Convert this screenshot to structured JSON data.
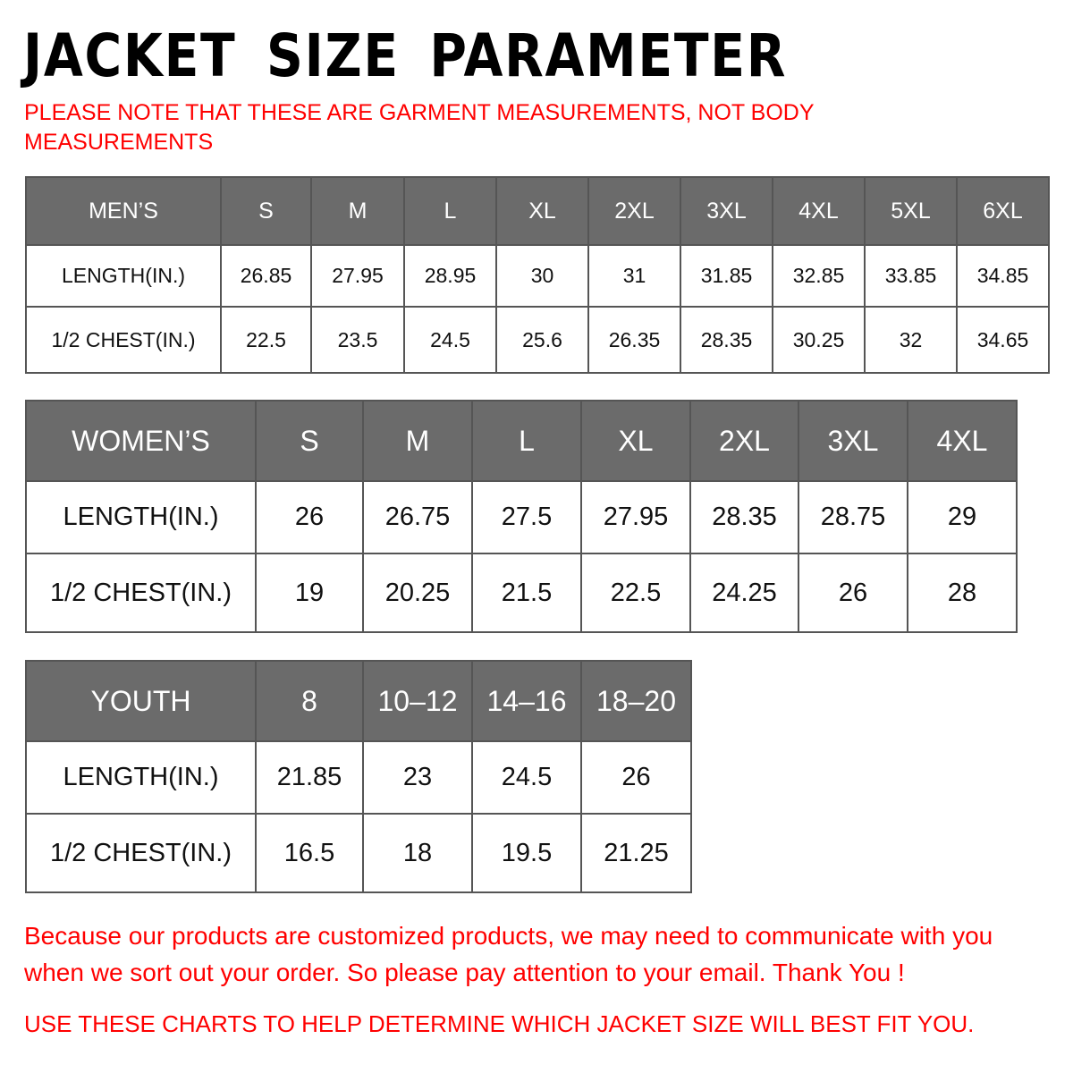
{
  "title": "JACKET SIZE PARAMETER",
  "note": "PLEASE NOTE THAT THESE ARE GARMENT MEASUREMENTS, NOT BODY MEASUREMENTS",
  "tables": [
    {
      "id": "mens",
      "header": [
        "MEN’S",
        "S",
        "M",
        "L",
        "XL",
        "2XL",
        "3XL",
        "4XL",
        "5XL",
        "6XL"
      ],
      "rows": [
        [
          "LENGTH(IN.)",
          "26.85",
          "27.95",
          "28.95",
          "30",
          "31",
          "31.85",
          "32.85",
          "33.85",
          "34.85"
        ],
        [
          "1/2 CHEST(IN.)",
          "22.5",
          "23.5",
          "24.5",
          "25.6",
          "26.35",
          "28.35",
          "30.25",
          "32",
          "34.65"
        ]
      ]
    },
    {
      "id": "womens",
      "header": [
        "WOMEN’S",
        "S",
        "M",
        "L",
        "XL",
        "2XL",
        "3XL",
        "4XL"
      ],
      "rows": [
        [
          "LENGTH(IN.)",
          "26",
          "26.75",
          "27.5",
          "27.95",
          "28.35",
          "28.75",
          "29"
        ],
        [
          "1/2 CHEST(IN.)",
          "19",
          "20.25",
          "21.5",
          "22.5",
          "24.25",
          "26",
          "28"
        ]
      ]
    },
    {
      "id": "youth",
      "header": [
        "YOUTH",
        "8",
        "10–12",
        "14–16",
        "18–20"
      ],
      "rows": [
        [
          "LENGTH(IN.)",
          "21.85",
          "23",
          "24.5",
          "26"
        ],
        [
          "1/2 CHEST(IN.)",
          "16.5",
          "18",
          "19.5",
          "21.25"
        ]
      ]
    }
  ],
  "footer": {
    "line1": "Because our products are customized products, we may need to communicate with you when we sort out your order. So please pay attention to your email. Thank You !",
    "line2": "USE THESE CHARTS TO HELP DETERMINE WHICH JACKET SIZE WILL BEST FIT YOU."
  },
  "colors": {
    "header_bg": "#6b6b6b",
    "note_red": "#ff0000"
  }
}
